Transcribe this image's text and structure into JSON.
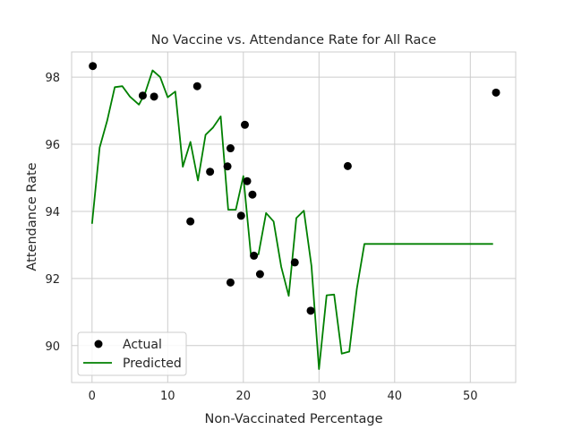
{
  "chart_data": {
    "type": "scatter",
    "title": "No Vaccine vs. Attendance Rate for All Race",
    "xlabel": "Non-Vaccinated Percentage",
    "ylabel": "Attendance Rate",
    "xlim": [
      -2.7,
      56.0
    ],
    "ylim": [
      88.9,
      98.75
    ],
    "xticks": [
      0,
      10,
      20,
      30,
      40,
      50
    ],
    "yticks": [
      90,
      92,
      94,
      96,
      98
    ],
    "grid": true,
    "legend_position": "lower-left",
    "series": [
      {
        "name": "Actual",
        "kind": "scatter",
        "color": "#000000",
        "points": [
          [
            0.1,
            98.33
          ],
          [
            6.7,
            97.45
          ],
          [
            8.2,
            97.42
          ],
          [
            13.9,
            97.73
          ],
          [
            13.0,
            93.7
          ],
          [
            15.6,
            95.18
          ],
          [
            17.9,
            95.34
          ],
          [
            18.3,
            95.88
          ],
          [
            18.3,
            91.88
          ],
          [
            19.7,
            93.87
          ],
          [
            20.2,
            96.58
          ],
          [
            20.5,
            94.9
          ],
          [
            21.2,
            94.5
          ],
          [
            21.4,
            92.68
          ],
          [
            22.2,
            92.13
          ],
          [
            26.8,
            92.48
          ],
          [
            28.9,
            91.04
          ],
          [
            33.8,
            95.35
          ],
          [
            53.4,
            97.54
          ]
        ]
      },
      {
        "name": "Predicted",
        "kind": "line",
        "color": "#008000",
        "points": [
          [
            0.0,
            93.63
          ],
          [
            1.0,
            95.9
          ],
          [
            2.0,
            96.7
          ],
          [
            3.0,
            97.7
          ],
          [
            4.0,
            97.73
          ],
          [
            5.0,
            97.42
          ],
          [
            6.2,
            97.18
          ],
          [
            7.0,
            97.52
          ],
          [
            8.0,
            98.2
          ],
          [
            9.0,
            98.0
          ],
          [
            10.0,
            97.4
          ],
          [
            11.0,
            97.57
          ],
          [
            12.0,
            95.33
          ],
          [
            13.0,
            96.07
          ],
          [
            14.0,
            94.92
          ],
          [
            15.0,
            96.28
          ],
          [
            16.0,
            96.5
          ],
          [
            17.0,
            96.83
          ],
          [
            18.0,
            94.05
          ],
          [
            19.0,
            94.05
          ],
          [
            20.0,
            95.05
          ],
          [
            21.0,
            92.68
          ],
          [
            22.0,
            92.72
          ],
          [
            23.0,
            93.95
          ],
          [
            24.0,
            93.7
          ],
          [
            25.0,
            92.35
          ],
          [
            26.0,
            91.48
          ],
          [
            27.0,
            93.8
          ],
          [
            28.0,
            94.02
          ],
          [
            29.0,
            92.37
          ],
          [
            30.0,
            89.3
          ],
          [
            31.0,
            91.5
          ],
          [
            32.0,
            91.52
          ],
          [
            33.0,
            89.76
          ],
          [
            34.0,
            89.82
          ],
          [
            35.0,
            91.7
          ],
          [
            36.0,
            93.03
          ],
          [
            40.0,
            93.03
          ],
          [
            45.0,
            93.03
          ],
          [
            50.0,
            93.03
          ],
          [
            53.0,
            93.03
          ]
        ]
      }
    ]
  }
}
